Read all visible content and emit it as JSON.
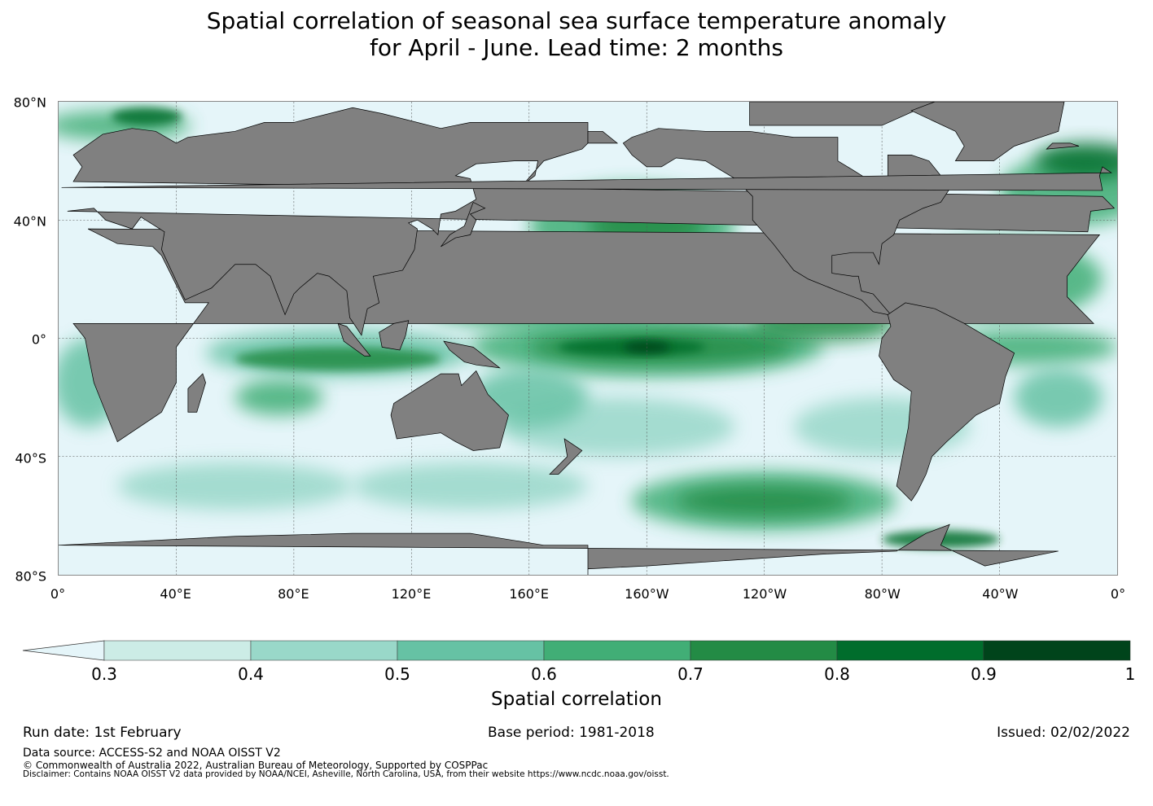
{
  "title": {
    "line1": "Spatial correlation of seasonal sea surface temperature anomaly",
    "line2": "for April - June. Lead time: 2 months"
  },
  "map": {
    "lat_labels": [
      "80°N",
      "40°N",
      "0°",
      "40°S",
      "80°S"
    ],
    "lon_labels": [
      "0°",
      "40°E",
      "80°E",
      "120°E",
      "160°E",
      "160°W",
      "120°W",
      "80°W",
      "40°W",
      "0°"
    ],
    "land_color": "#808080",
    "ocean_below_min_color": "#e5f5f9"
  },
  "colorbar": {
    "under_color": "#e5f5f9",
    "colors": [
      "#ccece6",
      "#99d8c9",
      "#66c2a4",
      "#41ae76",
      "#238b45",
      "#006d2c",
      "#00441b"
    ],
    "ticks": [
      "0.3",
      "0.4",
      "0.5",
      "0.6",
      "0.7",
      "0.8",
      "0.9",
      "1"
    ],
    "label": "Spatial correlation"
  },
  "footer": {
    "run_date": "Run date: 1st February",
    "base_period": "Base period: 1981-2018",
    "issued": "Issued: 02/02/2022",
    "data_source": "Data source: ACCESS-S2 and NOAA OISST V2",
    "copyright": "© Commonwealth of Australia 2022, Australian Bureau of Meteorology, Supported by COSPPac",
    "disclaimer": "Disclaimer: Contains NOAA OISST V2 data provided by NOAA/NCEI, Asheville, North Carolina, USA, from their website https://www.ncdc.noaa.gov/oisst."
  }
}
